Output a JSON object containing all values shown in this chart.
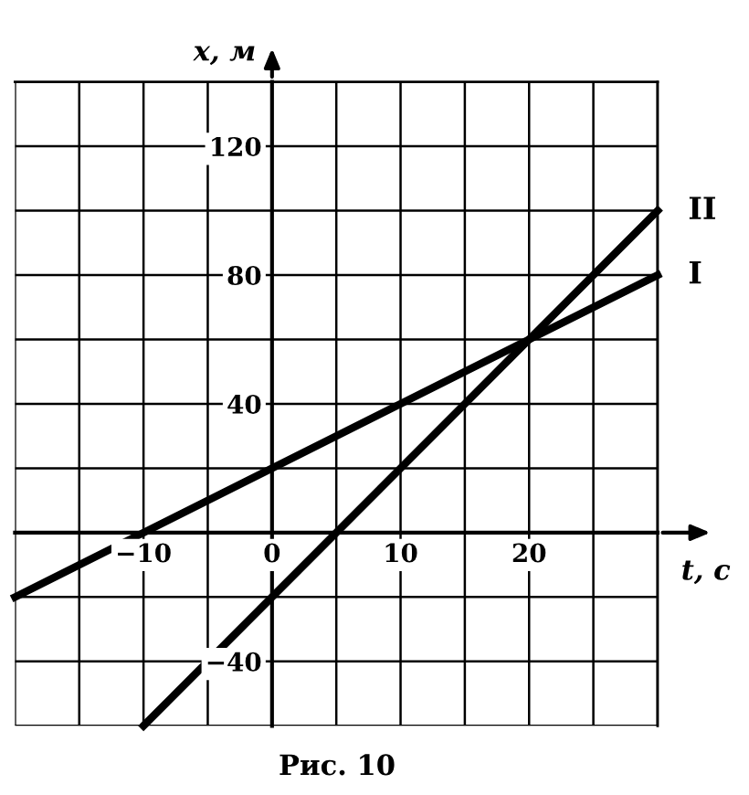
{
  "chart_data": {
    "type": "line",
    "xlabel": "t, с",
    "ylabel": "x, м",
    "annotations": [
      "Рис. 10"
    ],
    "series": [
      {
        "name": "I",
        "color": "#000000",
        "x": [
          -20,
          30
        ],
        "values": [
          -20,
          80
        ]
      },
      {
        "name": "II",
        "color": "#000000",
        "x": [
          -10,
          30
        ],
        "values": [
          -60,
          100
        ]
      }
    ],
    "xlim": [
      -20,
      30
    ],
    "ylim": [
      -60,
      140
    ],
    "xticks": [
      {
        "value": -20,
        "label": null
      },
      {
        "value": -15,
        "label": null
      },
      -10,
      {
        "value": -5,
        "label": null
      },
      0,
      {
        "value": 5,
        "label": null
      },
      10,
      {
        "value": 15,
        "label": null
      },
      20,
      {
        "value": 25,
        "label": null
      },
      {
        "value": 30,
        "label": null
      }
    ],
    "yticks": [
      {
        "value": -60,
        "label": null
      },
      -40,
      {
        "value": -20,
        "label": null
      },
      {
        "value": 20,
        "label": null
      },
      40,
      {
        "value": 60,
        "label": null
      },
      80,
      {
        "value": 100,
        "label": null
      },
      120,
      {
        "value": 140,
        "label": null
      }
    ],
    "grid": true,
    "legend": false,
    "marker": "none",
    "line_style": "solid"
  }
}
